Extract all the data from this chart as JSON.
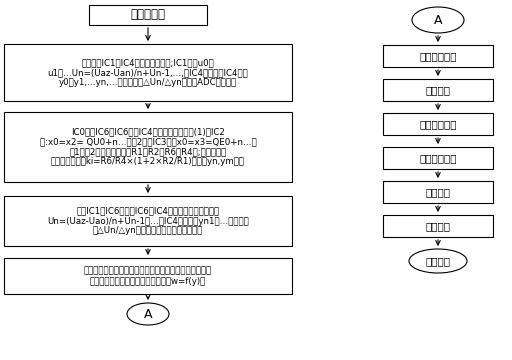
{
  "bg_color": "#ffffff",
  "title": "系统初始化",
  "box1_lines": [
    "直接接通IC1和IC4，断开其他连接;IC1输出u0、",
    "u1、…Un=(Uaz-Uan)/n+Un-1,…,给IC4输入端，IC4输出",
    "y0、y1,…yn,…；通过计算△Un/△yn，检测ADC线性度；"
  ],
  "box2_lines": [
    "IC0接通IC6；IC6接通IC4；断开其他连接；(1)在IC2",
    "中:x0=x2= QU0+n…；（2）在IC3中：x0=x3=QE0+n…；",
    "（1）（2）交叉循环调节R1、R2、R6、R4值;设置数据放",
    "大器的放大倍数ki=R6/R4×(1+2×R2/R1)，检测yn,ym值；"
  ],
  "box3_lines": [
    "接通IC1和IC6；接通IC6和IC4；断开其它连接；输入",
    "Un=(Uaz-Uao)/n+Un-1，…，IC4对应输出yn1，…；通过计",
    "算△Un/△yn，检测数据放大器的线性度；"
  ],
  "box4_lines": [
    "建立传感器输入物理量与输出电压的关系，对传感器进行",
    "数据拟合并进行函数变换，得出函数w=f(y)；"
  ],
  "left_end_oval": "A",
  "right_start_oval": "A",
  "right_boxes": [
    "扫描键盘模块",
    "数据采集",
    "数据处理模块",
    "数据存储模块",
    "显示模块",
    "通信模块"
  ],
  "right_end_oval": "其他处理",
  "line_color": "#000000",
  "box_color": "#ffffff",
  "text_color": "#000000"
}
